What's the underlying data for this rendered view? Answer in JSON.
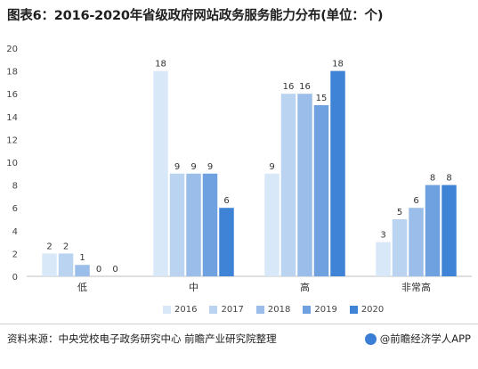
{
  "title": "图表6：2016-2020年省级政府网站政务服务能力分布(单位：个)",
  "source": "资料来源：中央党校电子政务研究中心 前瞻产业研究院整理",
  "brand": "@前瞻经济学人APP",
  "colors": {
    "2016": "#d9e8f8",
    "2017": "#b9d3f1",
    "2018": "#9bbde9",
    "2019": "#6fa0e0",
    "2020": "#3f83d6"
  },
  "chart_data": {
    "type": "bar",
    "categories": [
      "低",
      "中",
      "高",
      "非常高"
    ],
    "series": [
      {
        "name": "2016",
        "values": [
          2,
          18,
          9,
          3
        ]
      },
      {
        "name": "2017",
        "values": [
          2,
          9,
          16,
          5
        ]
      },
      {
        "name": "2018",
        "values": [
          1,
          9,
          16,
          6
        ]
      },
      {
        "name": "2019",
        "values": [
          0,
          9,
          15,
          8
        ]
      },
      {
        "name": "2020",
        "values": [
          0,
          6,
          18,
          8
        ]
      }
    ],
    "yticks": [
      0,
      2,
      4,
      6,
      8,
      10,
      12,
      14,
      16,
      18,
      20
    ],
    "ylim": [
      0,
      20
    ],
    "grid": false,
    "legend": "bottom"
  }
}
